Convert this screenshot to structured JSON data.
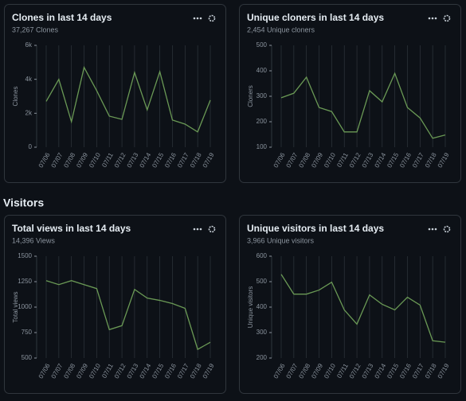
{
  "heading": "Visitors",
  "chart_data": [
    {
      "type": "line",
      "title": "Clones in last 14 days",
      "subtitle": "37,267 Clones",
      "ylabel": "Clones",
      "color": "#6a9955",
      "categories": [
        "07/06",
        "07/07",
        "07/08",
        "07/09",
        "07/10",
        "07/11",
        "07/12",
        "07/13",
        "07/14",
        "07/15",
        "07/16",
        "07/17",
        "07/18",
        "07/19"
      ],
      "values": [
        2700,
        4000,
        1500,
        4700,
        3330,
        1830,
        1640,
        4400,
        2200,
        4450,
        1600,
        1360,
        900,
        2770
      ],
      "ylim": [
        0,
        6000
      ],
      "yticks": [
        0,
        {
          "value": 2000,
          "label": "2k"
        },
        {
          "value": 4000,
          "label": "4k"
        },
        {
          "value": 6000,
          "label": "6k"
        }
      ]
    },
    {
      "type": "line",
      "title": "Unique cloners in last 14 days",
      "subtitle": "2,454 Unique cloners",
      "ylabel": "Cloners",
      "color": "#6a9955",
      "categories": [
        "07/06",
        "07/07",
        "07/08",
        "07/09",
        "07/10",
        "07/11",
        "07/12",
        "07/13",
        "07/14",
        "07/15",
        "07/16",
        "07/17",
        "07/18",
        "07/19"
      ],
      "values": [
        294,
        312,
        375,
        256,
        240,
        160,
        160,
        322,
        278,
        390,
        256,
        215,
        135,
        148
      ],
      "ylim": [
        100,
        500
      ],
      "yticks": [
        100,
        200,
        300,
        400,
        500
      ]
    },
    {
      "type": "line",
      "title": "Total views in last 14 days",
      "subtitle": "14,396 Views",
      "ylabel": "Total views",
      "color": "#6a9955",
      "categories": [
        "07/06",
        "07/07",
        "07/08",
        "07/09",
        "07/10",
        "07/11",
        "07/12",
        "07/13",
        "07/14",
        "07/15",
        "07/16",
        "07/17",
        "07/18",
        "07/19"
      ],
      "values": [
        1260,
        1221,
        1260,
        1221,
        1182,
        779,
        818,
        1174,
        1089,
        1066,
        1035,
        988,
        585,
        655
      ],
      "ylim": [
        500,
        1500
      ],
      "yticks": [
        500,
        750,
        1000,
        1250,
        1500
      ]
    },
    {
      "type": "line",
      "title": "Unique visitors in last 14 days",
      "subtitle": "3,966 Unique visitors",
      "ylabel": "Unique visitors",
      "color": "#6a9955",
      "categories": [
        "07/06",
        "07/07",
        "07/08",
        "07/09",
        "07/10",
        "07/11",
        "07/12",
        "07/13",
        "07/14",
        "07/15",
        "07/16",
        "07/17",
        "07/18",
        "07/19"
      ],
      "values": [
        529,
        451,
        451,
        467,
        498,
        389,
        333,
        448,
        411,
        389,
        439,
        408,
        268,
        262
      ],
      "ylim": [
        200,
        600
      ],
      "yticks": [
        200,
        300,
        400,
        500,
        600
      ]
    }
  ]
}
